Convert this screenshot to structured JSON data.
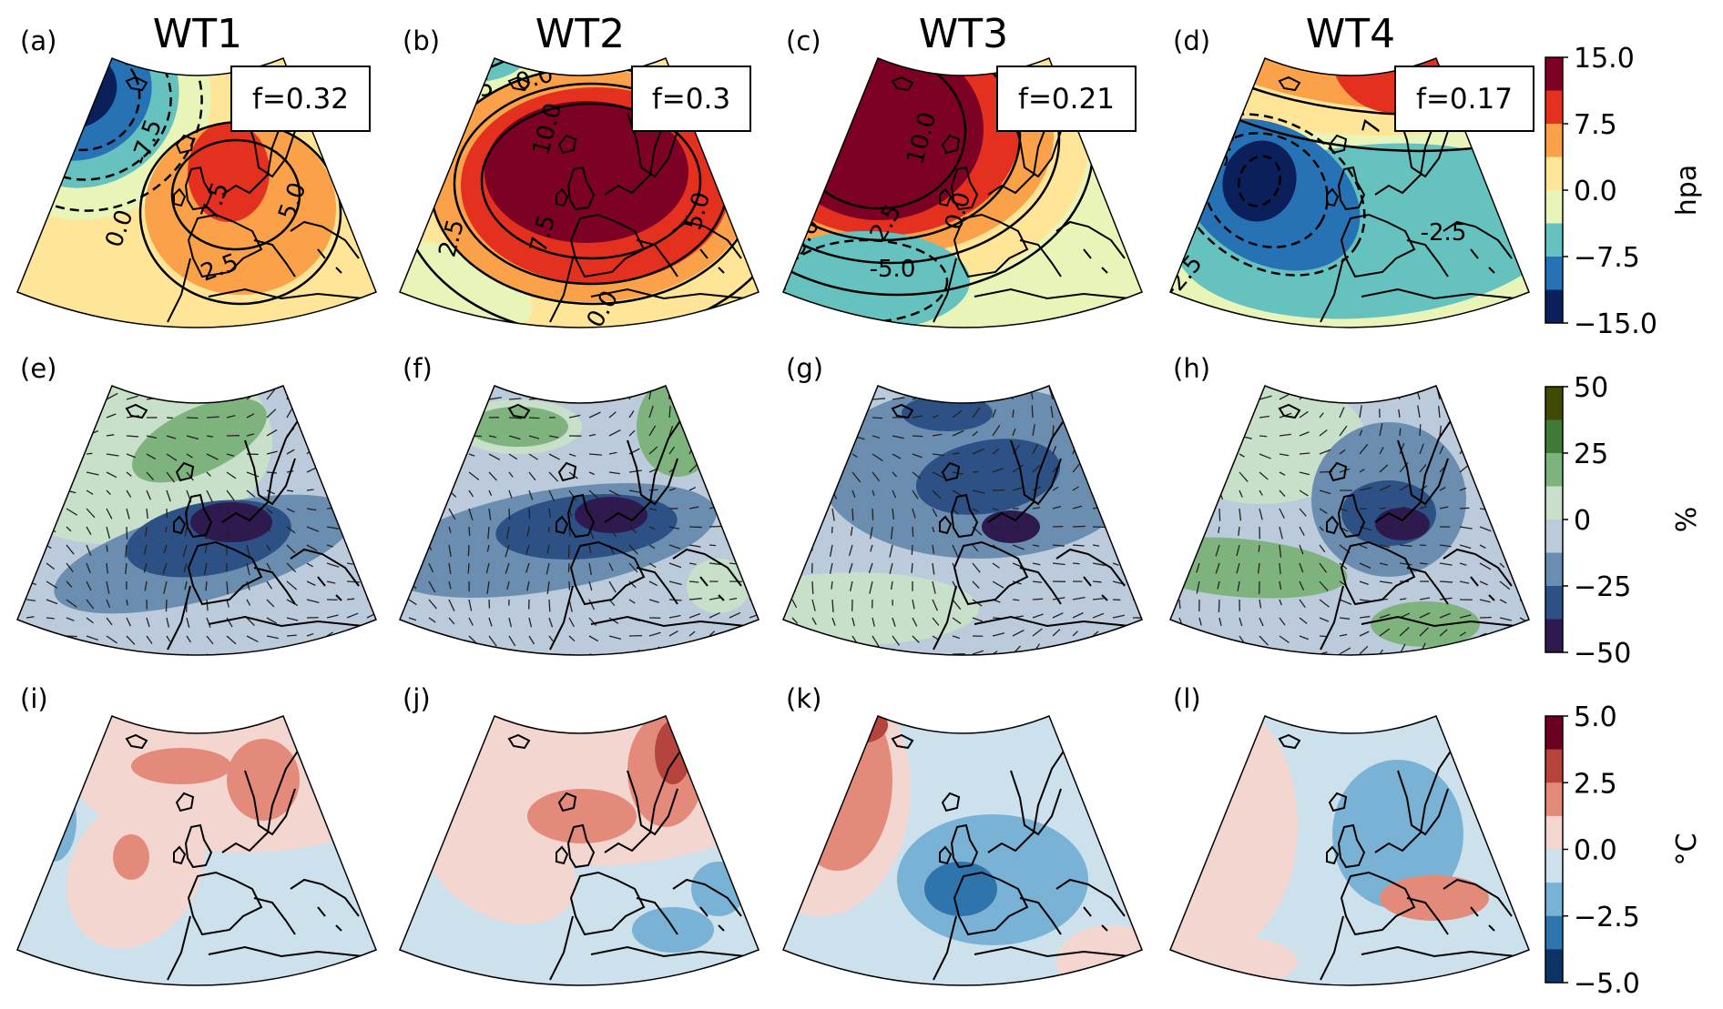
{
  "figure": {
    "column_titles": [
      "WT1",
      "WT2",
      "WT3",
      "WT4"
    ],
    "panels": [
      {
        "id": "a",
        "label": "(a)",
        "row": 0,
        "col": 0,
        "freq": "f=0.32",
        "contour_labels": [
          "-5.0",
          "-7.5",
          "0.0",
          "7.5",
          "2.5",
          "5.0"
        ]
      },
      {
        "id": "b",
        "label": "(b)",
        "row": 0,
        "col": 1,
        "freq": "f=0.3",
        "contour_labels": [
          "-2.5",
          "0.0",
          "10.0",
          "7.5",
          "2.5",
          "0.0",
          "5.0"
        ]
      },
      {
        "id": "c",
        "label": "(c)",
        "row": 0,
        "col": 2,
        "freq": "f=0.21",
        "contour_labels": [
          "12.5",
          "10.0",
          "5.0",
          "2.5",
          "0.0",
          "-5.0"
        ]
      },
      {
        "id": "d",
        "label": "(d)",
        "row": 0,
        "col": 3,
        "freq": "f=0.17",
        "contour_labels": [
          "0.0",
          "-5.0",
          "-2.5",
          "-2.5",
          "7"
        ]
      },
      {
        "id": "e",
        "label": "(e)",
        "row": 1,
        "col": 0
      },
      {
        "id": "f",
        "label": "(f)",
        "row": 1,
        "col": 1
      },
      {
        "id": "g",
        "label": "(g)",
        "row": 1,
        "col": 2
      },
      {
        "id": "h",
        "label": "(h)",
        "row": 1,
        "col": 3
      },
      {
        "id": "i",
        "label": "(i)",
        "row": 2,
        "col": 0
      },
      {
        "id": "j",
        "label": "(j)",
        "row": 2,
        "col": 1
      },
      {
        "id": "k",
        "label": "(k)",
        "row": 2,
        "col": 2
      },
      {
        "id": "l",
        "label": "(l)",
        "row": 2,
        "col": 3
      }
    ],
    "colorbars": [
      {
        "variable": "sea-level-pressure-anomaly",
        "unit": "hpa",
        "ticks": [
          "15.0",
          "7.5",
          "0.0",
          "−7.5",
          "−15.0"
        ],
        "range": [
          -15,
          15
        ],
        "colors": [
          "#7d0025",
          "#e4301f",
          "#fba14a",
          "#fee597",
          "#e9f5b8",
          "#66c2bf",
          "#2672b4",
          "#0b1f5b"
        ]
      },
      {
        "variable": "precipitation-anomaly",
        "unit": "%",
        "ticks": [
          "50",
          "25",
          "0",
          "−25",
          "−50"
        ],
        "range": [
          -50,
          50
        ],
        "colors": [
          "#404a00",
          "#3f7a36",
          "#7fb37d",
          "#c8e0c9",
          "#bccbdb",
          "#6b8eb0",
          "#2d5185",
          "#2e1a4f"
        ]
      },
      {
        "variable": "temperature-anomaly",
        "unit": "°C",
        "ticks": [
          "5.0",
          "2.5",
          "0.0",
          "−2.5",
          "−5.0"
        ],
        "range": [
          -5,
          5
        ],
        "colors": [
          "#6b0021",
          "#b6443e",
          "#e48a7b",
          "#f4d6d1",
          "#cde1ec",
          "#7ab2d5",
          "#2f75ad",
          "#0b3363"
        ]
      }
    ]
  }
}
